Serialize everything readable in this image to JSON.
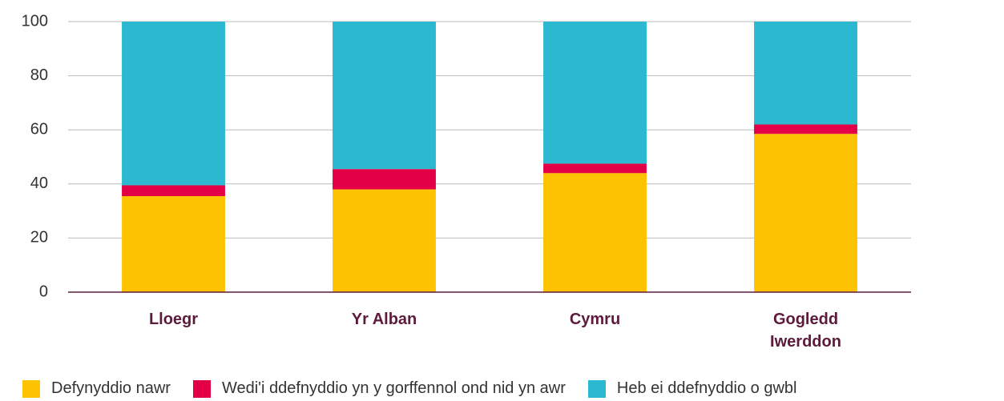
{
  "chart_data": {
    "type": "stacked_bar",
    "categories": [
      "Lloegr",
      "Yr Alban",
      "Cymru",
      "Gogledd Iwerddon"
    ],
    "series": [
      {
        "name": "Defynyddio nawr",
        "color": "#fdc300",
        "values": [
          35.5,
          38,
          44,
          58.5
        ]
      },
      {
        "name": "Wedi'i ddefnyddio yn y gorffennol ond nid yn awr",
        "color": "#e40046",
        "values": [
          4,
          7.5,
          3.5,
          3.5
        ]
      },
      {
        "name": "Heb ei ddefnyddio o gwbl",
        "color": "#2bb8d0",
        "values": [
          60.5,
          54.5,
          52.5,
          38
        ]
      }
    ],
    "ylim": [
      0,
      100
    ],
    "yticks": [
      0,
      20,
      40,
      60,
      80,
      100
    ],
    "grid": true
  }
}
